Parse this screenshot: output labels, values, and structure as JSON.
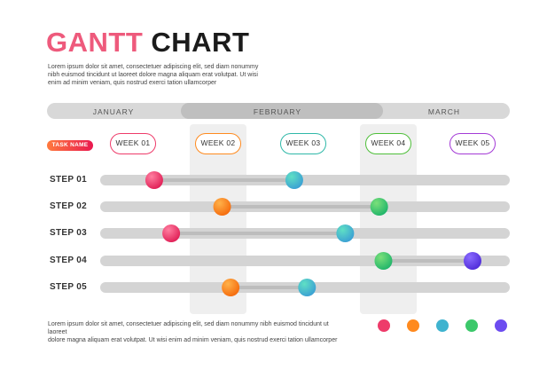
{
  "title": {
    "part1": "GANTT",
    "part2": "CHART"
  },
  "intro_text": "Lorem ipsum dolor sit amet, consectetuer adipiscing elit, sed diam nonummy\nnibh euismod tincidunt ut laoreet dolore magna aliquam erat volutpat. Ut wisi\nenim ad minim veniam, quis nostrud exerci tation ullamcorper",
  "footer_text": "Lorem ipsum dolor sit amet, consectetuer adipiscing elit, sed diam nonummy nibh euismod tincidunt ut laoreet\ndolore magna aliquam erat volutpat. Ut wisi enim ad minim veniam, quis nostrud exerci tation ullamcorper",
  "task_badge": "TASK NAME",
  "colors": {
    "pink": "#ee3b6a",
    "orange": "#ff8a1e",
    "teal": "#3fb3cf",
    "green": "#3cc86a",
    "purple": "#6c4cf0"
  },
  "chart_data": {
    "type": "gantt",
    "months": [
      "JANUARY",
      "FEBRUARY",
      "MARCH"
    ],
    "highlighted_month": "FEBRUARY",
    "weeks": [
      {
        "label": "WEEK 01",
        "color": "#ee3b6a"
      },
      {
        "label": "WEEK 02",
        "color": "#ff8a1e"
      },
      {
        "label": "WEEK 03",
        "color": "#2fb8a8"
      },
      {
        "label": "WEEK 04",
        "color": "#4fbf3a"
      },
      {
        "label": "WEEK 05",
        "color": "#a43bd6"
      }
    ],
    "highlighted_weeks": [
      "WEEK 02",
      "WEEK 04"
    ],
    "steps": [
      {
        "name": "STEP 01",
        "start": 1.25,
        "end": 2.9,
        "start_color": "pink",
        "end_color": "teal"
      },
      {
        "name": "STEP 02",
        "start": 2.05,
        "end": 3.9,
        "start_color": "orange",
        "end_color": "green"
      },
      {
        "name": "STEP 03",
        "start": 1.45,
        "end": 3.5,
        "start_color": "pink",
        "end_color": "teal"
      },
      {
        "name": "STEP 04",
        "start": 3.95,
        "end": 5.0,
        "start_color": "green",
        "end_color": "purple"
      },
      {
        "name": "STEP 05",
        "start": 2.15,
        "end": 3.05,
        "start_color": "orange",
        "end_color": "teal"
      }
    ],
    "legend": [
      "pink",
      "orange",
      "teal",
      "green",
      "purple"
    ]
  }
}
